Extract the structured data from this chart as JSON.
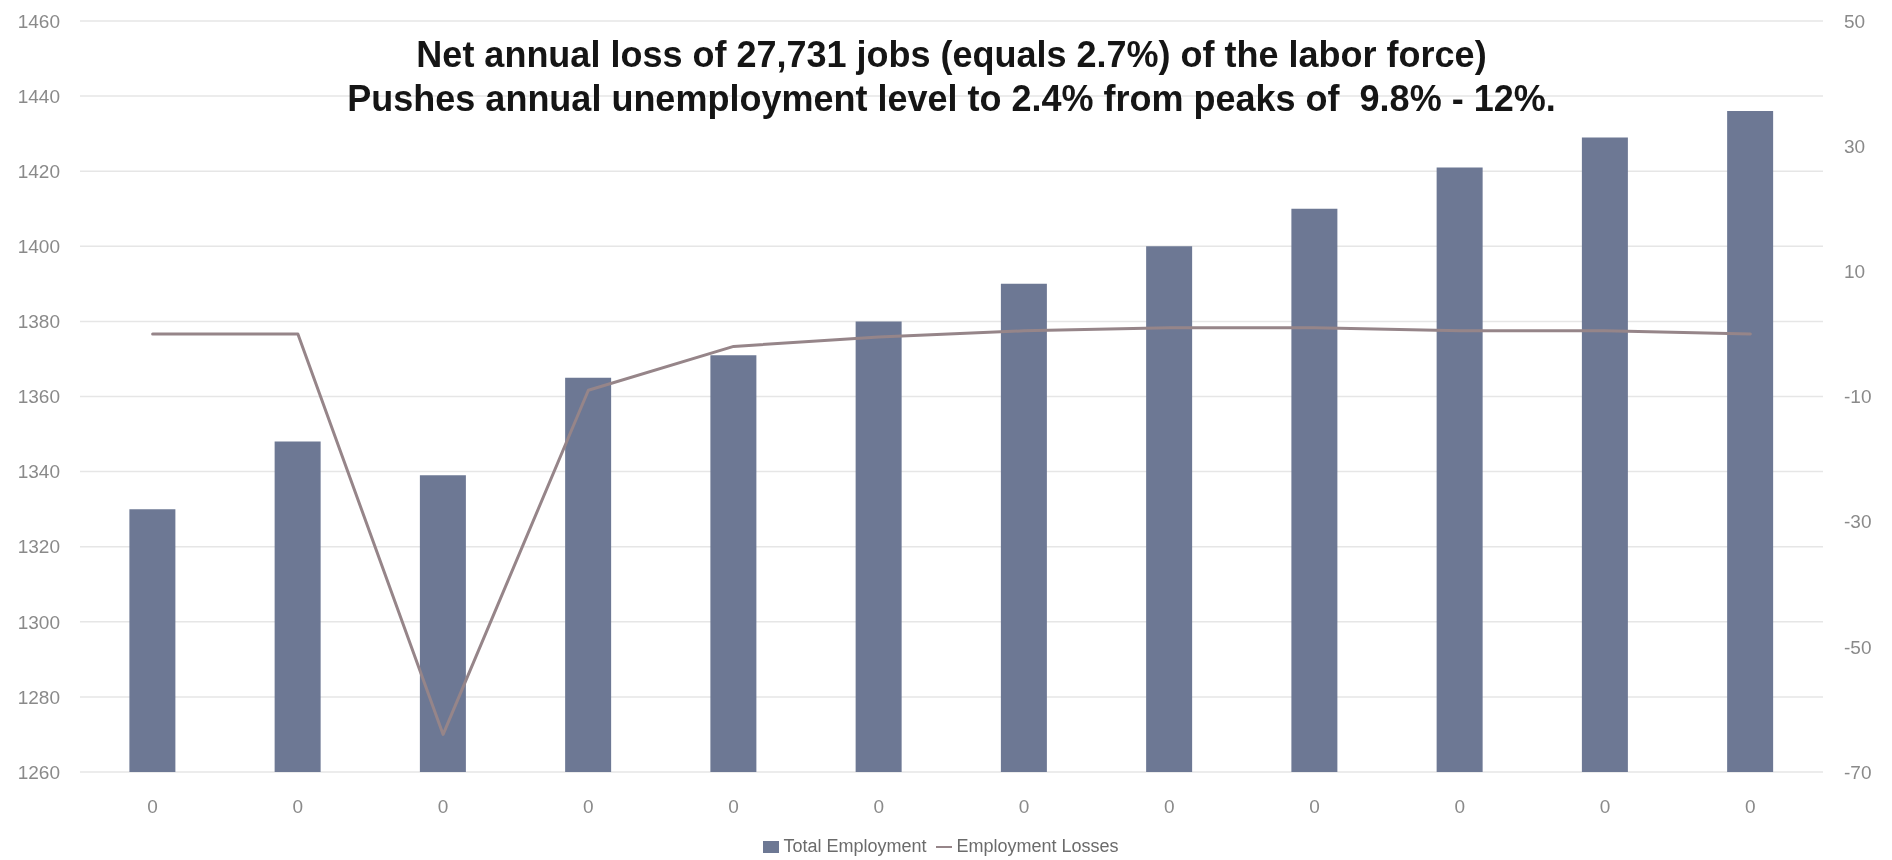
{
  "chart_data": {
    "type": "bar",
    "title": "Net annual loss of 27,731 jobs (equals 2.7%) of the labor force)\nPushes annual unemployment level to 2.4% from peaks of  9.8% - 12%.",
    "categories": [
      "0",
      "0",
      "0",
      "0",
      "0",
      "0",
      "0",
      "0",
      "0",
      "0",
      "0",
      "0"
    ],
    "series": [
      {
        "name": "Total Employment",
        "color": "#6d7894",
        "values": [
          1330,
          1348,
          1339,
          1365,
          1371,
          1380,
          1390,
          1400,
          1410,
          1421,
          1429,
          1436
        ]
      },
      {
        "name": "Employment Losses",
        "type": "line",
        "axis": "y2",
        "color": "#968589",
        "values": [
          0,
          0,
          -64,
          -9,
          -2,
          -0.5,
          0.5,
          1,
          1,
          0.5,
          0.5,
          0
        ]
      }
    ],
    "ylim": [
      1260,
      1460
    ],
    "yticks": [
      1260,
      1280,
      1300,
      1320,
      1340,
      1360,
      1380,
      1400,
      1420,
      1440,
      1460
    ],
    "y2lim": [
      -70,
      50
    ],
    "y2ticks": [
      -70,
      -50,
      -30,
      -10,
      10,
      30,
      50
    ],
    "grid": "y",
    "legend": "bottom",
    "marker": "none"
  }
}
